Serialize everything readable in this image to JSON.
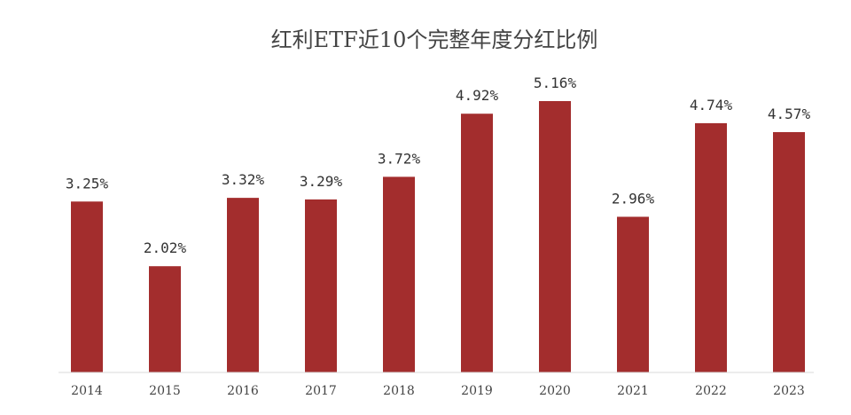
{
  "chart_data": {
    "type": "bar",
    "title": "红利ETF近10个完整年度分红比例",
    "xlabel": "",
    "ylabel": "",
    "categories": [
      "2014",
      "2015",
      "2016",
      "2017",
      "2018",
      "2019",
      "2020",
      "2021",
      "2022",
      "2023"
    ],
    "series": [
      {
        "values": [
          3.25,
          2.02,
          3.32,
          3.29,
          3.72,
          4.92,
          5.16,
          2.96,
          4.74,
          4.57
        ],
        "labels": [
          "3.25%",
          "2.02%",
          "3.32%",
          "3.29%",
          "3.72%",
          "4.92%",
          "5.16%",
          "2.96%",
          "4.74%",
          "4.57%"
        ],
        "color": "#a32d2d"
      }
    ],
    "ylim": [
      0,
      5.16
    ],
    "grid": false,
    "legend": "none",
    "axis_color": "#d9d9d9"
  }
}
